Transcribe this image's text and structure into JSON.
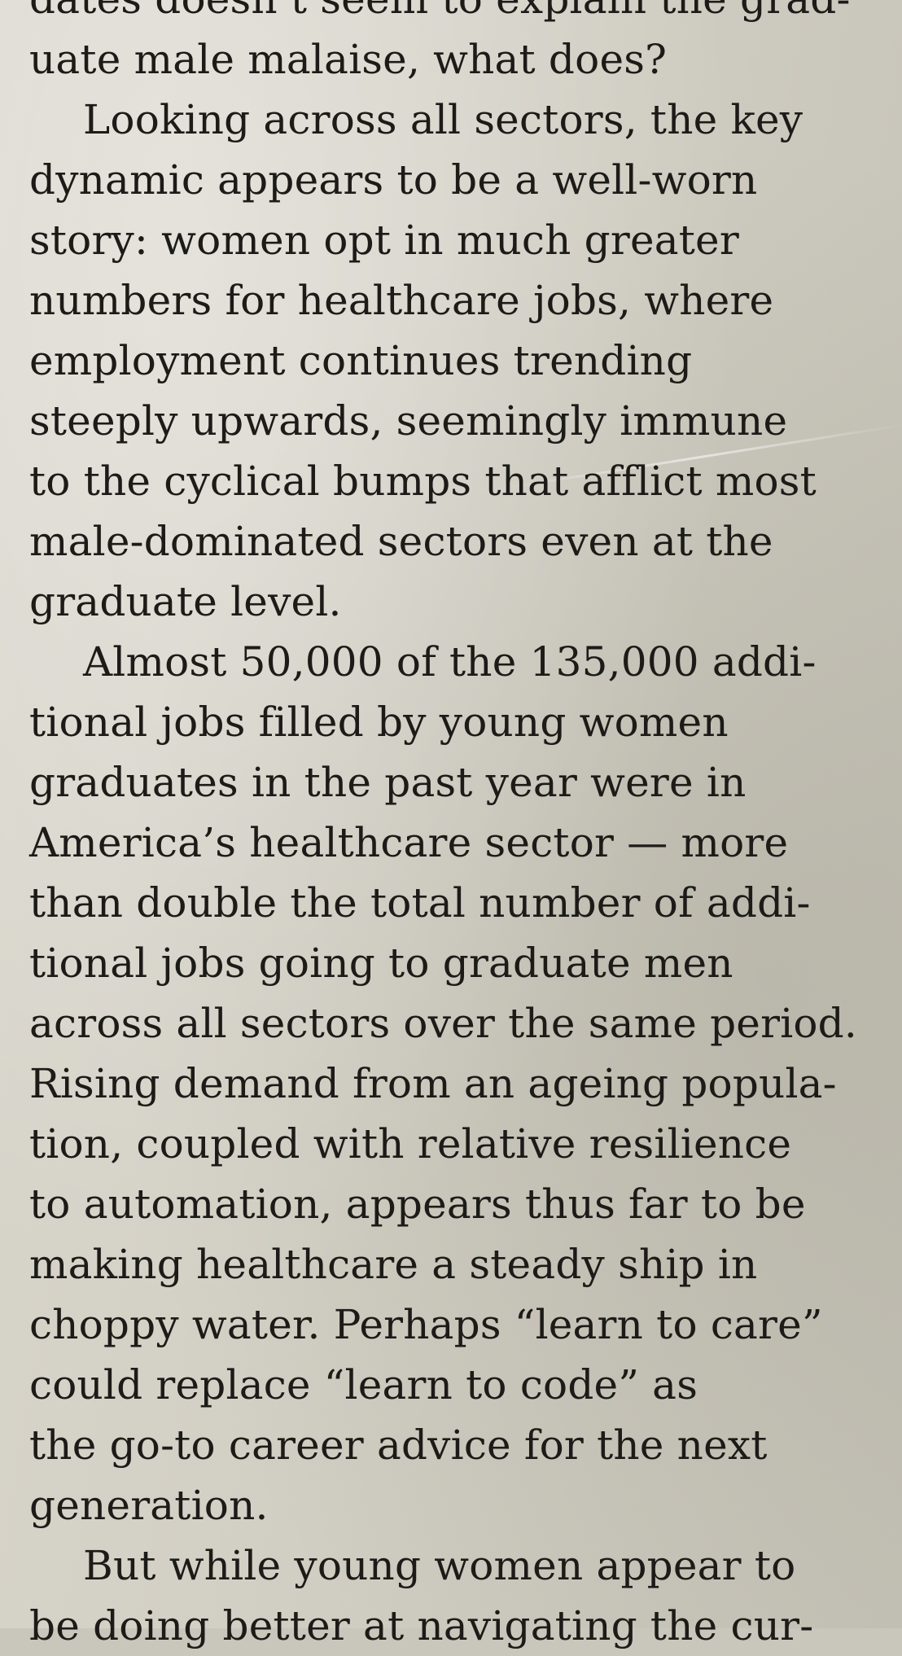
{
  "article": {
    "lines": [
      "dates doesn’t seem to explain the grad-",
      "uate male malaise, what does?",
      "Looking across all sectors, the key",
      "dynamic appears to be a well-worn",
      "story: women opt in much greater",
      "numbers for healthcare jobs, where",
      "employment continues trending",
      "steeply upwards, seemingly immune",
      "to the cyclical bumps that afflict most",
      "male-dominated sectors even at the",
      "graduate level.",
      "Almost 50,000 of the 135,000 addi-",
      "tional jobs filled by young women",
      "graduates in the past year were in",
      "America’s healthcare sector — more",
      "than double the total number of addi-",
      "tional jobs going to graduate men",
      "across all sectors over the same period.",
      "Rising demand from an ageing popula-",
      "tion, coupled with relative resilience",
      "to automation, appears thus far to be",
      "making healthcare a steady ship in",
      "choppy water. Perhaps “learn to care”",
      "could replace “learn to code” as",
      "the go-to career advice for the next",
      "generation.",
      "But while young women appear to",
      "be doing better at navigating the cur-"
    ]
  }
}
